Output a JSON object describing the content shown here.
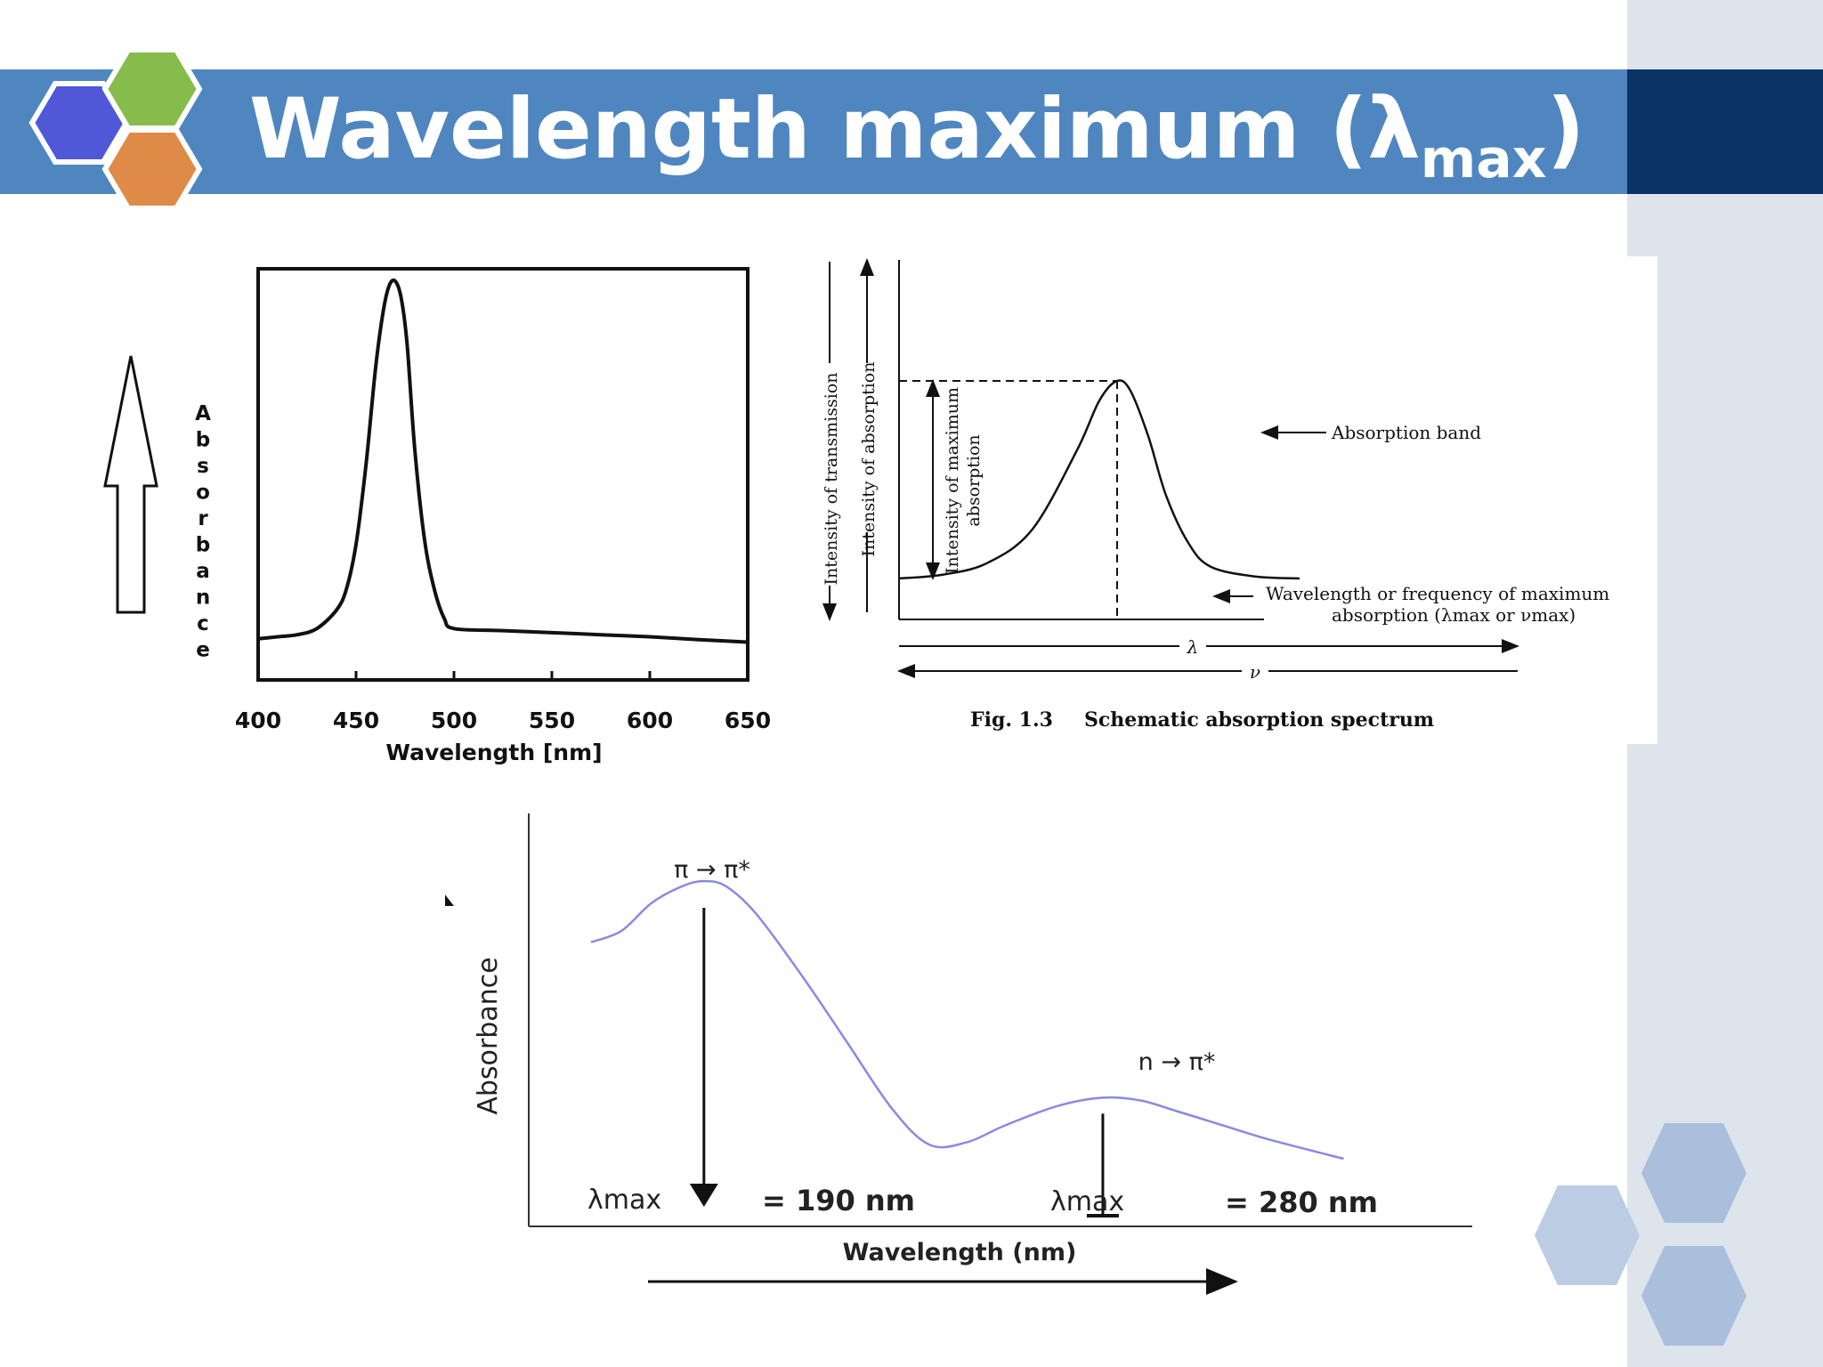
{
  "slide": {
    "title_main": "Wavelength maximum (λ",
    "title_sub": "max",
    "title_close": ")",
    "colors": {
      "title_bar": "#4f86c0",
      "title_bar_dark": "#0b3466",
      "side_panel": "#dde4ec",
      "hex_blue": "#5058d8",
      "hex_green": "#86bc4c",
      "hex_orange": "#e08a48",
      "curve_bottom": "#8a8ae0"
    }
  },
  "chart_data": [
    {
      "type": "line",
      "id": "absorbance-spectrum",
      "title": "",
      "xlabel": "Wavelength [nm]",
      "ylabel": "Absorbance",
      "xlim": [
        400,
        650
      ],
      "ylim": [
        0,
        1
      ],
      "x_ticks": [
        "400",
        "450",
        "500",
        "550",
        "600",
        "650"
      ],
      "series": [
        {
          "x": [
            400,
            410,
            420,
            430,
            440,
            445,
            450,
            455,
            460,
            464,
            467,
            470,
            473,
            476,
            480,
            485,
            490,
            495,
            500,
            525,
            550,
            575,
            600,
            625,
            650
          ],
          "y": [
            0.1,
            0.105,
            0.11,
            0.125,
            0.17,
            0.22,
            0.33,
            0.52,
            0.76,
            0.9,
            0.96,
            0.97,
            0.93,
            0.82,
            0.56,
            0.34,
            0.22,
            0.15,
            0.125,
            0.12,
            0.115,
            0.11,
            0.105,
            0.098,
            0.092
          ]
        }
      ]
    },
    {
      "type": "line",
      "id": "schematic-absorption-spectrum",
      "caption_label": "Fig. 1.3",
      "caption_text": "Schematic absorption spectrum",
      "axis_label_transmission": "Intensity of transmission",
      "axis_label_absorption": "Intensity of absorption",
      "annotation_max_line1": "Intensity of maximum",
      "annotation_max_line2": "absorption",
      "annotation_band": "Absorption band",
      "annotation_wavelength_line1": "Wavelength or frequency of maximum",
      "annotation_wavelength_line2": "absorption (λmax or νmax)",
      "arrow_lambda": "λ",
      "arrow_nu": "ν",
      "series": [
        {
          "x": [
            0.0,
            0.1,
            0.2,
            0.3,
            0.4,
            0.45,
            0.49,
            0.52,
            0.56,
            0.6,
            0.65,
            0.7,
            0.8,
            0.9
          ],
          "y": [
            0.0,
            0.02,
            0.08,
            0.25,
            0.65,
            0.9,
            1.0,
            0.95,
            0.72,
            0.42,
            0.18,
            0.06,
            0.01,
            0.0
          ]
        }
      ]
    },
    {
      "type": "line",
      "id": "pi-n-transitions",
      "xlabel": "Wavelength (nm)",
      "ylabel": "Absorbance",
      "transition_1": "π → π*",
      "transition_2": "n → π*",
      "lambda_label_1": "λmax",
      "lambda_value_1": "= 190 nm",
      "lambda_label_2": "λmax",
      "lambda_value_2": "= 280 nm",
      "series": [
        {
          "x": [
            0.0,
            0.04,
            0.08,
            0.12,
            0.15,
            0.18,
            0.22,
            0.28,
            0.34,
            0.4,
            0.45,
            0.5,
            0.55,
            0.62,
            0.68,
            0.73,
            0.78,
            0.84,
            0.9,
            1.0
          ],
          "y": [
            0.78,
            0.82,
            0.92,
            0.98,
            1.0,
            0.98,
            0.88,
            0.66,
            0.42,
            0.18,
            0.05,
            0.06,
            0.12,
            0.19,
            0.22,
            0.21,
            0.17,
            0.12,
            0.07,
            0.0
          ]
        }
      ]
    }
  ]
}
